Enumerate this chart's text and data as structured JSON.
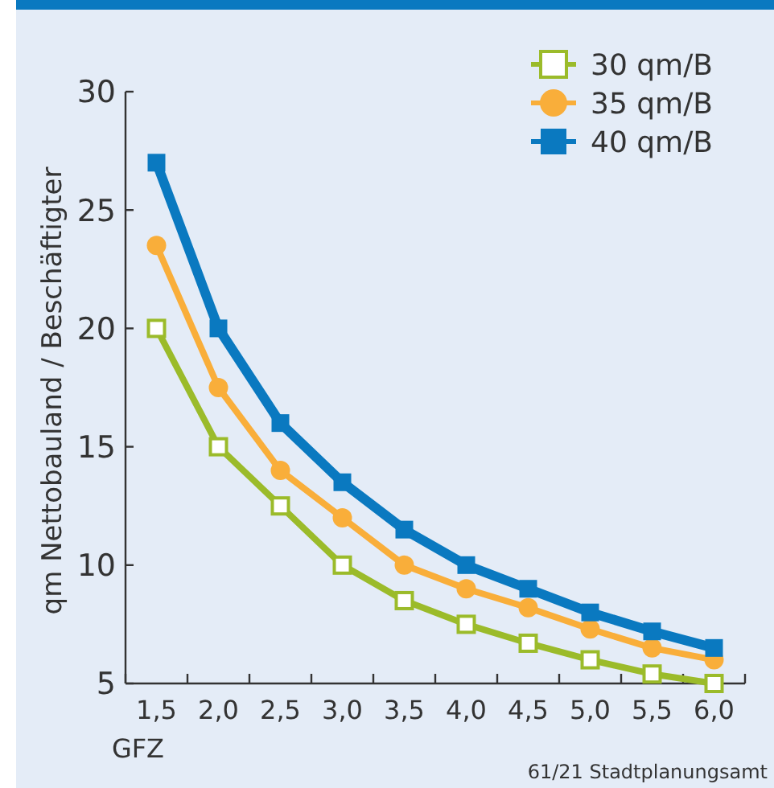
{
  "chart_data": {
    "type": "line",
    "xlabel": "GFZ",
    "ylabel": "qm Nettobauland / Beschäftigter",
    "categories": [
      "1,5",
      "2,0",
      "2,5",
      "3,0",
      "3,5",
      "4,0",
      "4,5",
      "5,0",
      "5,5",
      "6,0"
    ],
    "ylim": [
      5,
      30
    ],
    "yticks": [
      5,
      10,
      15,
      20,
      25,
      30
    ],
    "grid": false,
    "legend": "top right",
    "line_style": "solid",
    "annotations": [
      "61/21 Stadtplanungsamt"
    ],
    "series": [
      {
        "name": "30 qm/B",
        "color": "#9bbb2a",
        "marker": "square",
        "values": [
          20,
          15,
          12.5,
          10,
          8.5,
          7.5,
          6.7,
          6,
          5.4,
          5
        ]
      },
      {
        "name": "35 qm/B",
        "color": "#f9ae3a",
        "marker": "circle",
        "values": [
          23.5,
          17.5,
          14,
          12,
          10,
          9,
          8.2,
          7.3,
          6.5,
          6
        ]
      },
      {
        "name": "40 qm/B",
        "color": "#0a79c0",
        "marker": "square",
        "values": [
          27,
          20,
          16,
          13.5,
          11.5,
          10,
          9,
          8,
          7.2,
          6.5
        ]
      }
    ]
  }
}
